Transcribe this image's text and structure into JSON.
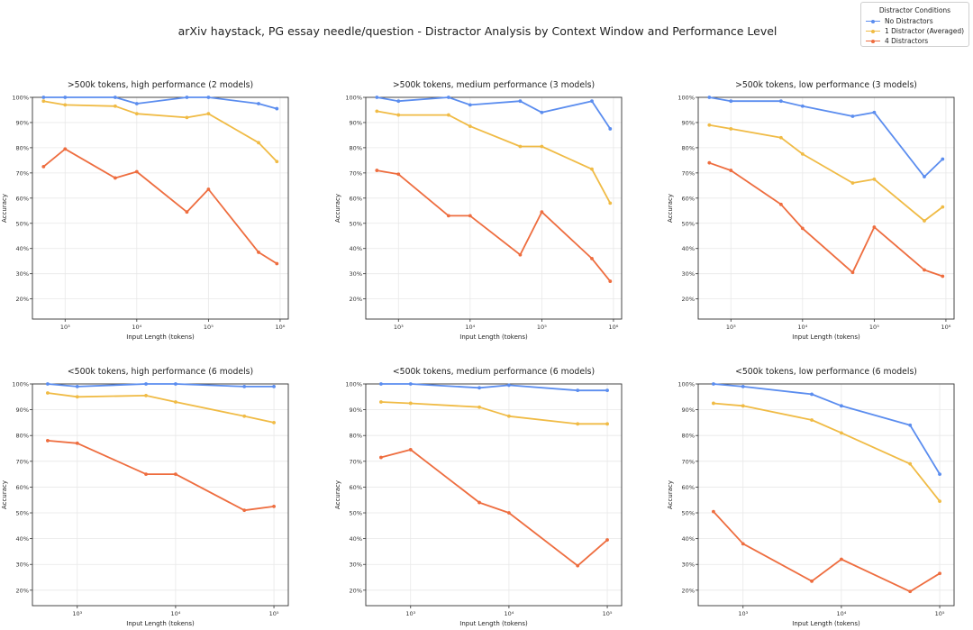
{
  "title": "arXiv haystack, PG essay needle/question - Distractor Analysis by Context Window and Performance Level",
  "legend": {
    "title": "Distractor Conditions",
    "placement": "top-right",
    "items": [
      {
        "label": "No Distractors",
        "color": "#5b8def"
      },
      {
        "label": "1 Distractor (Averaged)",
        "color": "#f0bb45"
      },
      {
        "label": "4 Distractors",
        "color": "#ee6d3f"
      }
    ]
  },
  "chart_data": [
    {
      "type": "line",
      "title": ">500k tokens, high performance (2 models)",
      "xlabel": "Input Length (tokens)",
      "ylabel": "Accuracy",
      "xscale": "log",
      "xlim": [
        350,
        1300000
      ],
      "ylim": [
        0.12,
        1.0
      ],
      "xticks": [
        {
          "v": 1000,
          "label": "10³"
        },
        {
          "v": 10000,
          "label": "10⁴"
        },
        {
          "v": 100000,
          "label": "10⁵"
        },
        {
          "v": 1000000,
          "label": "10⁶"
        }
      ],
      "yticks": [
        {
          "v": 0.2,
          "label": "20%"
        },
        {
          "v": 0.3,
          "label": "30%"
        },
        {
          "v": 0.4,
          "label": "40%"
        },
        {
          "v": 0.5,
          "label": "50%"
        },
        {
          "v": 0.6,
          "label": "60%"
        },
        {
          "v": 0.7,
          "label": "70%"
        },
        {
          "v": 0.8,
          "label": "80%"
        },
        {
          "v": 0.9,
          "label": "90%"
        },
        {
          "v": 1.0,
          "label": "100%"
        }
      ],
      "grid": true,
      "x": [
        500,
        1000,
        5000,
        10000,
        50000,
        100000,
        500000,
        900000
      ],
      "series": [
        {
          "name": "No Distractors",
          "color": "#5b8def",
          "values": [
            1.0,
            1.0,
            1.0,
            0.975,
            1.0,
            1.0,
            0.975,
            0.955
          ]
        },
        {
          "name": "1 Distractor (Averaged)",
          "color": "#f0bb45",
          "values": [
            0.985,
            0.97,
            0.965,
            0.935,
            0.92,
            0.935,
            0.82,
            0.745
          ]
        },
        {
          "name": "4 Distractors",
          "color": "#ee6d3f",
          "values": [
            0.725,
            0.795,
            0.68,
            0.705,
            0.545,
            0.635,
            0.385,
            0.34
          ]
        }
      ]
    },
    {
      "type": "line",
      "title": ">500k tokens, medium performance (3 models)",
      "xlabel": "Input Length (tokens)",
      "ylabel": "Accuracy",
      "xscale": "log",
      "xlim": [
        350,
        1300000
      ],
      "ylim": [
        0.12,
        1.0
      ],
      "xticks": [
        {
          "v": 1000,
          "label": "10³"
        },
        {
          "v": 10000,
          "label": "10⁴"
        },
        {
          "v": 100000,
          "label": "10⁵"
        },
        {
          "v": 1000000,
          "label": "10⁶"
        }
      ],
      "yticks": [
        {
          "v": 0.2,
          "label": "20%"
        },
        {
          "v": 0.3,
          "label": "30%"
        },
        {
          "v": 0.4,
          "label": "40%"
        },
        {
          "v": 0.5,
          "label": "50%"
        },
        {
          "v": 0.6,
          "label": "60%"
        },
        {
          "v": 0.7,
          "label": "70%"
        },
        {
          "v": 0.8,
          "label": "80%"
        },
        {
          "v": 0.9,
          "label": "90%"
        },
        {
          "v": 1.0,
          "label": "100%"
        }
      ],
      "grid": true,
      "x": [
        500,
        1000,
        5000,
        10000,
        50000,
        100000,
        500000,
        900000
      ],
      "series": [
        {
          "name": "No Distractors",
          "color": "#5b8def",
          "values": [
            1.0,
            0.985,
            1.0,
            0.97,
            0.985,
            0.94,
            0.985,
            0.875
          ]
        },
        {
          "name": "1 Distractor (Averaged)",
          "color": "#f0bb45",
          "values": [
            0.945,
            0.93,
            0.93,
            0.885,
            0.805,
            0.805,
            0.715,
            0.58
          ]
        },
        {
          "name": "4 Distractors",
          "color": "#ee6d3f",
          "values": [
            0.71,
            0.695,
            0.53,
            0.53,
            0.375,
            0.545,
            0.36,
            0.27
          ]
        }
      ]
    },
    {
      "type": "line",
      "title": ">500k tokens, low performance (3 models)",
      "xlabel": "Input Length (tokens)",
      "ylabel": "Accuracy",
      "xscale": "log",
      "xlim": [
        350,
        1300000
      ],
      "ylim": [
        0.12,
        1.0
      ],
      "xticks": [
        {
          "v": 1000,
          "label": "10³"
        },
        {
          "v": 10000,
          "label": "10⁴"
        },
        {
          "v": 100000,
          "label": "10⁵"
        },
        {
          "v": 1000000,
          "label": "10⁶"
        }
      ],
      "yticks": [
        {
          "v": 0.2,
          "label": "20%"
        },
        {
          "v": 0.3,
          "label": "30%"
        },
        {
          "v": 0.4,
          "label": "40%"
        },
        {
          "v": 0.5,
          "label": "50%"
        },
        {
          "v": 0.6,
          "label": "60%"
        },
        {
          "v": 0.7,
          "label": "70%"
        },
        {
          "v": 0.8,
          "label": "80%"
        },
        {
          "v": 0.9,
          "label": "90%"
        },
        {
          "v": 1.0,
          "label": "100%"
        }
      ],
      "grid": true,
      "x": [
        500,
        1000,
        5000,
        10000,
        50000,
        100000,
        500000,
        900000
      ],
      "series": [
        {
          "name": "No Distractors",
          "color": "#5b8def",
          "values": [
            1.0,
            0.985,
            0.985,
            0.965,
            0.925,
            0.94,
            0.685,
            0.755
          ]
        },
        {
          "name": "1 Distractor (Averaged)",
          "color": "#f0bb45",
          "values": [
            0.89,
            0.875,
            0.84,
            0.775,
            0.66,
            0.675,
            0.51,
            0.565
          ]
        },
        {
          "name": "4 Distractors",
          "color": "#ee6d3f",
          "values": [
            0.74,
            0.71,
            0.575,
            0.48,
            0.305,
            0.485,
            0.315,
            0.29
          ]
        }
      ]
    },
    {
      "type": "line",
      "title": "<500k tokens, high performance (6 models)",
      "xlabel": "Input Length (tokens)",
      "ylabel": "Accuracy",
      "xscale": "log",
      "xlim": [
        350,
        140000
      ],
      "ylim": [
        0.14,
        1.0
      ],
      "xticks": [
        {
          "v": 1000,
          "label": "10³"
        },
        {
          "v": 10000,
          "label": "10⁴"
        },
        {
          "v": 100000,
          "label": "10⁵"
        }
      ],
      "yticks": [
        {
          "v": 0.2,
          "label": "20%"
        },
        {
          "v": 0.3,
          "label": "30%"
        },
        {
          "v": 0.4,
          "label": "40%"
        },
        {
          "v": 0.5,
          "label": "50%"
        },
        {
          "v": 0.6,
          "label": "60%"
        },
        {
          "v": 0.7,
          "label": "70%"
        },
        {
          "v": 0.8,
          "label": "80%"
        },
        {
          "v": 0.9,
          "label": "90%"
        },
        {
          "v": 1.0,
          "label": "100%"
        }
      ],
      "grid": true,
      "x": [
        500,
        1000,
        5000,
        10000,
        50000,
        100000
      ],
      "series": [
        {
          "name": "No Distractors",
          "color": "#5b8def",
          "values": [
            1.0,
            0.99,
            1.0,
            1.0,
            0.99,
            0.99
          ]
        },
        {
          "name": "1 Distractor (Averaged)",
          "color": "#f0bb45",
          "values": [
            0.965,
            0.95,
            0.955,
            0.93,
            0.875,
            0.85
          ]
        },
        {
          "name": "4 Distractors",
          "color": "#ee6d3f",
          "values": [
            0.78,
            0.77,
            0.65,
            0.65,
            0.51,
            0.525
          ]
        }
      ]
    },
    {
      "type": "line",
      "title": "<500k tokens, medium performance (6 models)",
      "xlabel": "Input Length (tokens)",
      "ylabel": "Accuracy",
      "xscale": "log",
      "xlim": [
        350,
        140000
      ],
      "ylim": [
        0.14,
        1.0
      ],
      "xticks": [
        {
          "v": 1000,
          "label": "10³"
        },
        {
          "v": 10000,
          "label": "10⁴"
        },
        {
          "v": 100000,
          "label": "10⁵"
        }
      ],
      "yticks": [
        {
          "v": 0.2,
          "label": "20%"
        },
        {
          "v": 0.3,
          "label": "30%"
        },
        {
          "v": 0.4,
          "label": "40%"
        },
        {
          "v": 0.5,
          "label": "50%"
        },
        {
          "v": 0.6,
          "label": "60%"
        },
        {
          "v": 0.7,
          "label": "70%"
        },
        {
          "v": 0.8,
          "label": "80%"
        },
        {
          "v": 0.9,
          "label": "90%"
        },
        {
          "v": 1.0,
          "label": "100%"
        }
      ],
      "grid": true,
      "x": [
        500,
        1000,
        5000,
        10000,
        50000,
        100000
      ],
      "series": [
        {
          "name": "No Distractors",
          "color": "#5b8def",
          "values": [
            1.0,
            1.0,
            0.985,
            0.995,
            0.975,
            0.975
          ]
        },
        {
          "name": "1 Distractor (Averaged)",
          "color": "#f0bb45",
          "values": [
            0.93,
            0.925,
            0.91,
            0.875,
            0.845,
            0.845
          ]
        },
        {
          "name": "4 Distractors",
          "color": "#ee6d3f",
          "values": [
            0.715,
            0.745,
            0.54,
            0.5,
            0.295,
            0.395
          ]
        }
      ]
    },
    {
      "type": "line",
      "title": "<500k tokens, low performance (6 models)",
      "xlabel": "Input Length (tokens)",
      "ylabel": "Accuracy",
      "xscale": "log",
      "xlim": [
        350,
        140000
      ],
      "ylim": [
        0.14,
        1.0
      ],
      "xticks": [
        {
          "v": 1000,
          "label": "10³"
        },
        {
          "v": 10000,
          "label": "10⁴"
        },
        {
          "v": 100000,
          "label": "10⁵"
        }
      ],
      "yticks": [
        {
          "v": 0.2,
          "label": "20%"
        },
        {
          "v": 0.3,
          "label": "30%"
        },
        {
          "v": 0.4,
          "label": "40%"
        },
        {
          "v": 0.5,
          "label": "50%"
        },
        {
          "v": 0.6,
          "label": "60%"
        },
        {
          "v": 0.7,
          "label": "70%"
        },
        {
          "v": 0.8,
          "label": "80%"
        },
        {
          "v": 0.9,
          "label": "90%"
        },
        {
          "v": 1.0,
          "label": "100%"
        }
      ],
      "grid": true,
      "x": [
        500,
        1000,
        5000,
        10000,
        50000,
        100000
      ],
      "series": [
        {
          "name": "No Distractors",
          "color": "#5b8def",
          "values": [
            1.0,
            0.99,
            0.96,
            0.915,
            0.84,
            0.65
          ]
        },
        {
          "name": "1 Distractor (Averaged)",
          "color": "#f0bb45",
          "values": [
            0.925,
            0.915,
            0.86,
            0.81,
            0.69,
            0.545
          ]
        },
        {
          "name": "4 Distractors",
          "color": "#ee6d3f",
          "values": [
            0.505,
            0.38,
            0.235,
            0.32,
            0.195,
            0.265
          ]
        }
      ]
    }
  ]
}
